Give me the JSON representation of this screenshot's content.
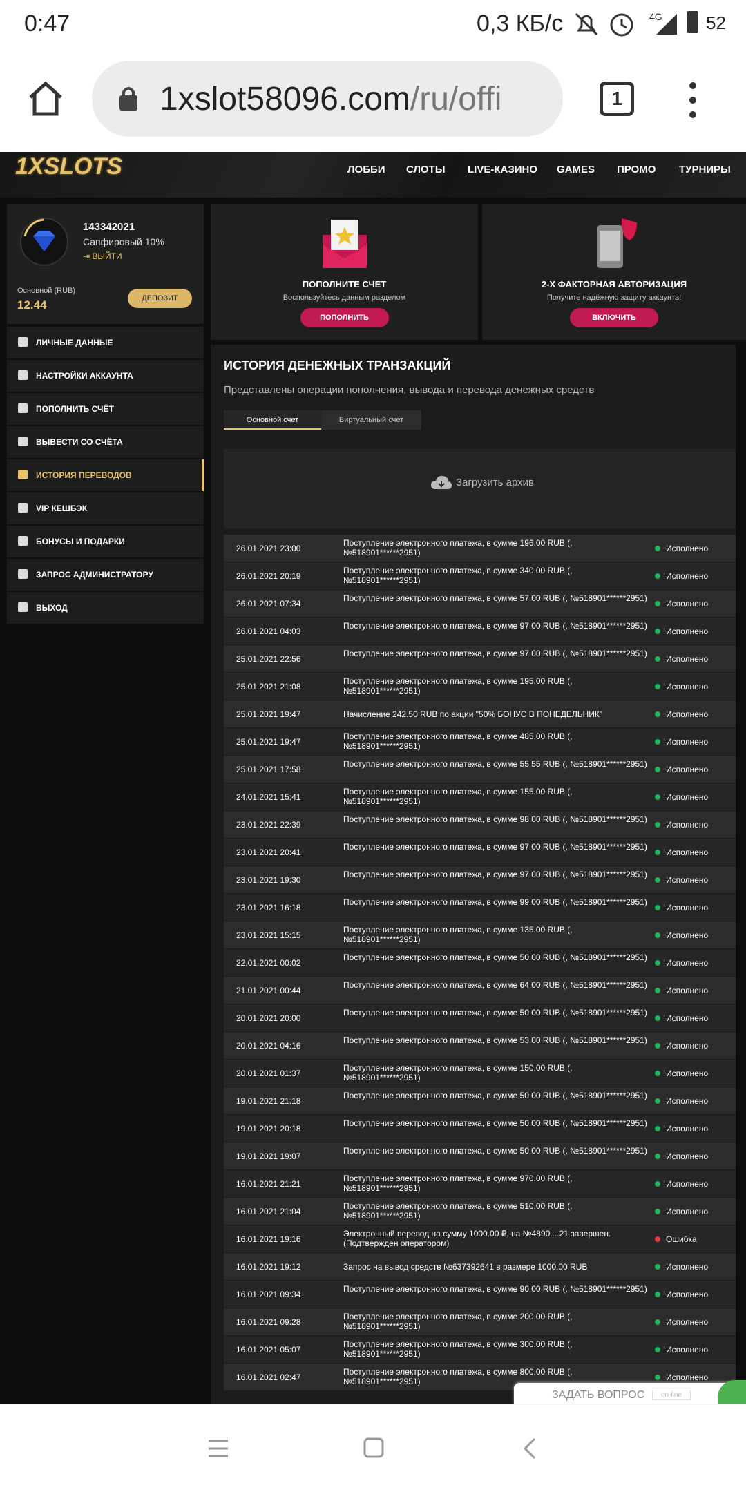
{
  "status_bar": {
    "time": "0:47",
    "speed": "0,3 КБ/с",
    "network": "4G",
    "battery": "52"
  },
  "browser": {
    "url_host": "1xslot58096.com",
    "url_path": "/ru/offi",
    "tabs": "1"
  },
  "site": {
    "logo": "1XSLOTS",
    "nav": [
      "ЛОББИ",
      "СЛОТЫ",
      "LIVE-КАЗИНО",
      "GAMES",
      "ПРОМО",
      "ТУРНИРЫ"
    ]
  },
  "profile": {
    "id": "143342021",
    "level": "Сапфировый 10%",
    "logout": "ВЫЙТИ",
    "balance_label": "Основной (RUB)",
    "balance": "12.44",
    "deposit": "ДЕПОЗИТ"
  },
  "menu": [
    "ЛИЧНЫЕ ДАННЫЕ",
    "НАСТРОЙКИ АККАУНТА",
    "ПОПОЛНИТЬ СЧЁТ",
    "ВЫВЕСТИ СО СЧЁТА",
    "ИСТОРИЯ ПЕРЕВОДОВ",
    "VIP КЕШБЭК",
    "БОНУСЫ И ПОДАРКИ",
    "ЗАПРОС АДМИНИСТРАТОРУ",
    "ВЫХОД"
  ],
  "cards": [
    {
      "title": "ПОПОЛНИТЕ СЧЕТ",
      "subtitle": "Воспользуйтесь данным разделом",
      "button": "ПОПОЛНИТЬ"
    },
    {
      "title": "2-Х ФАКТОРНАЯ АВТОРИЗАЦИЯ",
      "subtitle": "Получите надёжную защиту аккаунта!",
      "button": "ВКЛЮЧИТЬ"
    }
  ],
  "history": {
    "title": "ИСТОРИЯ ДЕНЕЖНЫХ ТРАНЗАКЦИЙ",
    "subtitle": "Представлены операции пополнения, вывода и перевода денежных средств",
    "tabs": [
      "Основной счет",
      "Виртуальный счет"
    ],
    "archive": "Загрузить архив",
    "rows": [
      {
        "date": "26.01.2021 23:00",
        "description": "Поступление электронного платежа, в сумме 196.00 RUB (, №518901******2951)",
        "status": "Исполнено",
        "dot_color": "#1fb35a"
      },
      {
        "date": "26.01.2021 20:19",
        "description": "Поступление электронного платежа, в сумме 340.00 RUB (, №518901******2951)",
        "status": "Исполнено",
        "dot_color": "#1fb35a"
      },
      {
        "date": "26.01.2021 07:34",
        "description": "Поступление электронного платежа, в сумме 57.00 RUB (, №518901******2951)",
        "status": "Исполнено",
        "dot_color": "#1fb35a"
      },
      {
        "date": "26.01.2021 04:03",
        "description": "Поступление электронного платежа, в сумме 97.00 RUB (, №518901******2951)",
        "status": "Исполнено",
        "dot_color": "#1fb35a"
      },
      {
        "date": "25.01.2021 22:56",
        "description": "Поступление электронного платежа, в сумме 97.00 RUB (, №518901******2951)",
        "status": "Исполнено",
        "dot_color": "#1fb35a"
      },
      {
        "date": "25.01.2021 21:08",
        "description": "Поступление электронного платежа, в сумме 195.00 RUB (, №518901******2951)",
        "status": "Исполнено",
        "dot_color": "#1fb35a"
      },
      {
        "date": "25.01.2021 19:47",
        "description": "Начисление 242.50 RUB по акции \"50% БОНУС В ПОНЕДЕЛЬНИК\"",
        "status": "Исполнено",
        "dot_color": "#1fb35a"
      },
      {
        "date": "25.01.2021 19:47",
        "description": "Поступление электронного платежа, в сумме 485.00 RUB (, №518901******2951)",
        "status": "Исполнено",
        "dot_color": "#1fb35a"
      },
      {
        "date": "25.01.2021 17:58",
        "description": "Поступление электронного платежа, в сумме 55.55 RUB (, №518901******2951)",
        "status": "Исполнено",
        "dot_color": "#1fb35a"
      },
      {
        "date": "24.01.2021 15:41",
        "description": "Поступление электронного платежа, в сумме 155.00 RUB (, №518901******2951)",
        "status": "Исполнено",
        "dot_color": "#1fb35a"
      },
      {
        "date": "23.01.2021 22:39",
        "description": "Поступление электронного платежа, в сумме 98.00 RUB (, №518901******2951)",
        "status": "Исполнено",
        "dot_color": "#1fb35a"
      },
      {
        "date": "23.01.2021 20:41",
        "description": "Поступление электронного платежа, в сумме 97.00 RUB (, №518901******2951)",
        "status": "Исполнено",
        "dot_color": "#1fb35a"
      },
      {
        "date": "23.01.2021 19:30",
        "description": "Поступление электронного платежа, в сумме 97.00 RUB (, №518901******2951)",
        "status": "Исполнено",
        "dot_color": "#1fb35a"
      },
      {
        "date": "23.01.2021 16:18",
        "description": "Поступление электронного платежа, в сумме 99.00 RUB (, №518901******2951)",
        "status": "Исполнено",
        "dot_color": "#1fb35a"
      },
      {
        "date": "23.01.2021 15:15",
        "description": "Поступление электронного платежа, в сумме 135.00 RUB (, №518901******2951)",
        "status": "Исполнено",
        "dot_color": "#1fb35a"
      },
      {
        "date": "22.01.2021 00:02",
        "description": "Поступление электронного платежа, в сумме 50.00 RUB (, №518901******2951)",
        "status": "Исполнено",
        "dot_color": "#1fb35a"
      },
      {
        "date": "21.01.2021 00:44",
        "description": "Поступление электронного платежа, в сумме 64.00 RUB (, №518901******2951)",
        "status": "Исполнено",
        "dot_color": "#1fb35a"
      },
      {
        "date": "20.01.2021 20:00",
        "description": "Поступление электронного платежа, в сумме 50.00 RUB (, №518901******2951)",
        "status": "Исполнено",
        "dot_color": "#1fb35a"
      },
      {
        "date": "20.01.2021 04:16",
        "description": "Поступление электронного платежа, в сумме 53.00 RUB (, №518901******2951)",
        "status": "Исполнено",
        "dot_color": "#1fb35a"
      },
      {
        "date": "20.01.2021 01:37",
        "description": "Поступление электронного платежа, в сумме 150.00 RUB (, №518901******2951)",
        "status": "Исполнено",
        "dot_color": "#1fb35a"
      },
      {
        "date": "19.01.2021 21:18",
        "description": "Поступление электронного платежа, в сумме 50.00 RUB (, №518901******2951)",
        "status": "Исполнено",
        "dot_color": "#1fb35a"
      },
      {
        "date": "19.01.2021 20:18",
        "description": "Поступление электронного платежа, в сумме 50.00 RUB (, №518901******2951)",
        "status": "Исполнено",
        "dot_color": "#1fb35a"
      },
      {
        "date": "19.01.2021 19:07",
        "description": "Поступление электронного платежа, в сумме 50.00 RUB (, №518901******2951)",
        "status": "Исполнено",
        "dot_color": "#1fb35a"
      },
      {
        "date": "16.01.2021 21:21",
        "description": "Поступление электронного платежа, в сумме 970.00 RUB (, №518901******2951)",
        "status": "Исполнено",
        "dot_color": "#1fb35a"
      },
      {
        "date": "16.01.2021 21:04",
        "description": "Поступление электронного платежа, в сумме 510.00 RUB (, №518901******2951)",
        "status": "Исполнено",
        "dot_color": "#1fb35a"
      },
      {
        "date": "16.01.2021 19:16",
        "description": "Электронный перевод на сумму 1000.00 ₽, на №4890....21 завершен. (Подтвержден оператором)",
        "status": "Ошибка",
        "dot_color": "#e53935"
      },
      {
        "date": "16.01.2021 19:12",
        "description": "Запрос на вывод средств №637392641 в размере 1000.00 RUB",
        "status": "Исполнено",
        "dot_color": "#1fb35a"
      },
      {
        "date": "16.01.2021 09:34",
        "description": "Поступление электронного платежа, в сумме 90.00 RUB (, №518901******2951)",
        "status": "Исполнено",
        "dot_color": "#1fb35a"
      },
      {
        "date": "16.01.2021 09:28",
        "description": "Поступление электронного платежа, в сумме 200.00 RUB (, №518901******2951)",
        "status": "Исполнено",
        "dot_color": "#1fb35a"
      },
      {
        "date": "16.01.2021 05:07",
        "description": "Поступление электронного платежа, в сумме 300.00 RUB (, №518901******2951)",
        "status": "Исполнено",
        "dot_color": "#1fb35a"
      },
      {
        "date": "16.01.2021 02:47",
        "description": "Поступление электронного платежа, в сумме 800.00 RUB (, №518901******2951)",
        "status": "Исполнено",
        "dot_color": "#1fb35a"
      }
    ]
  },
  "chat": {
    "label": "ЗАДАТЬ ВОПРОС",
    "status": "on-line"
  }
}
